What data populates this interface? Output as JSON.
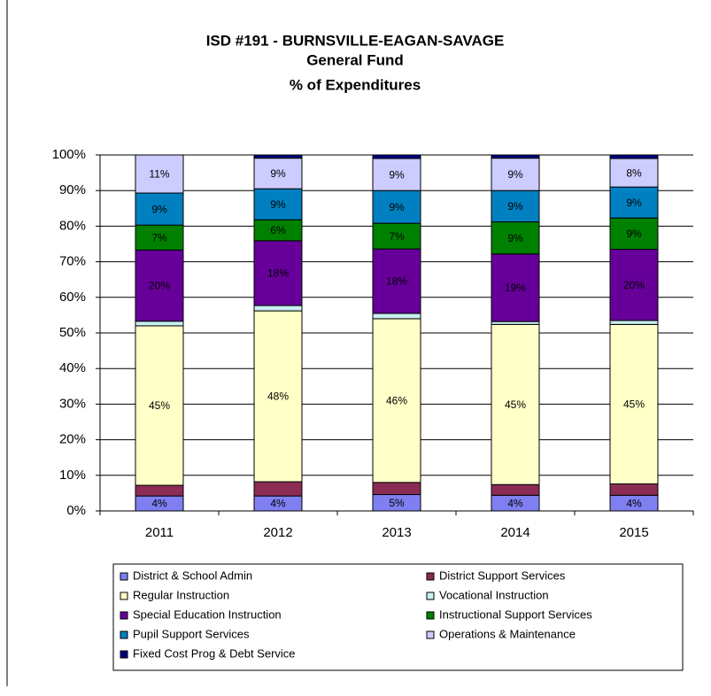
{
  "chart_data": {
    "type": "stacked_bar",
    "title": [
      "ISD #191 - BURNSVILLE-EAGAN-SAVAGE",
      "General Fund",
      "% of Expenditures"
    ],
    "categories": [
      "2011",
      "2012",
      "2013",
      "2014",
      "2015"
    ],
    "ylim": [
      0,
      100
    ],
    "yticks": [
      {
        "value": 0,
        "label": "0%"
      },
      {
        "value": 10,
        "label": "10%"
      },
      {
        "value": 20,
        "label": "20%"
      },
      {
        "value": 30,
        "label": "30%"
      },
      {
        "value": 40,
        "label": "40%"
      },
      {
        "value": 50,
        "label": "50%"
      },
      {
        "value": 60,
        "label": "60%"
      },
      {
        "value": 70,
        "label": "70%"
      },
      {
        "value": 80,
        "label": "80%"
      },
      {
        "value": 90,
        "label": "90%"
      },
      {
        "value": 100,
        "label": "100%"
      }
    ],
    "grid": true,
    "series": [
      {
        "name": "District & School Admin",
        "color": "#7f7ff2",
        "values": [
          4.2,
          4.2,
          4.6,
          4.4,
          4.4
        ],
        "value_labels": [
          "4%",
          "4%",
          "5%",
          "4%",
          "4%"
        ]
      },
      {
        "name": "District Support Services",
        "color": "#8b2c55",
        "values": [
          3.0,
          4.0,
          3.4,
          3.0,
          3.2
        ]
      },
      {
        "name": "Regular Instruction",
        "color": "#ffffc8",
        "values": [
          44.8,
          48.0,
          46.0,
          45.0,
          44.8
        ],
        "value_labels": [
          "45%",
          "48%",
          "46%",
          "45%",
          "45%"
        ]
      },
      {
        "name": "Vocational Instruction",
        "color": "#c8f0f0",
        "values": [
          1.3,
          1.5,
          1.5,
          0.8,
          1.1
        ]
      },
      {
        "name": "Special Education Instruction",
        "color": "#660099",
        "values": [
          20.0,
          18.2,
          18.1,
          19.0,
          20.0
        ],
        "value_labels": [
          "20%",
          "18%",
          "18%",
          "19%",
          "20%"
        ]
      },
      {
        "name": "Instructional Support Services",
        "color": "#008000",
        "values": [
          7.0,
          5.9,
          7.2,
          9.0,
          8.8
        ],
        "value_labels": [
          "7%",
          "6%",
          "7%",
          "9%",
          "9%"
        ]
      },
      {
        "name": "Pupil Support Services",
        "color": "#0080c0",
        "values": [
          9.0,
          8.7,
          9.2,
          8.8,
          8.7
        ],
        "value_labels": [
          "9%",
          "9%",
          "9%",
          "9%",
          "9%"
        ]
      },
      {
        "name": "Operations & Maintenance",
        "color": "#ccccff",
        "values": [
          10.7,
          8.6,
          9.0,
          9.1,
          8.0
        ],
        "value_labels": [
          "11%",
          "9%",
          "9%",
          "9%",
          "8%"
        ]
      },
      {
        "name": "Fixed Cost Prog & Debt Service",
        "color": "#000080",
        "values": [
          0,
          0.9,
          1.0,
          0.9,
          1.0
        ]
      }
    ]
  }
}
